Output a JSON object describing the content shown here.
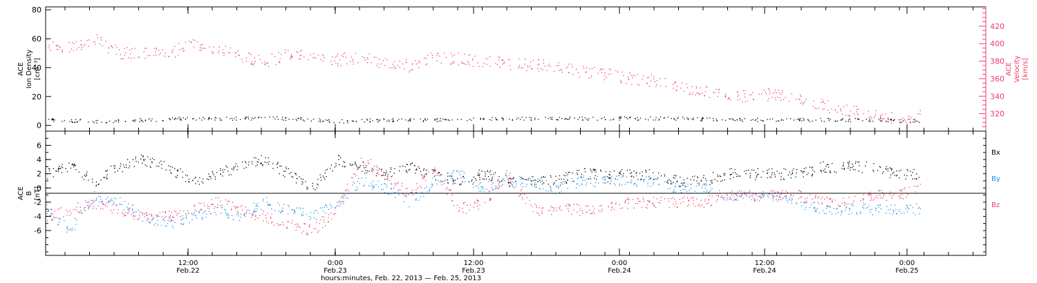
{
  "colors": {
    "black": "#000000",
    "pink": "#ee3a6a",
    "blue": "#1f8fe6"
  },
  "chart_data": [
    {
      "type": "scatter",
      "panel": "top",
      "ylabel_left": [
        "ACE",
        "Ion Density",
        "[cm⁻³]"
      ],
      "ylabel_right": [
        "ACE",
        "Velocity",
        "[km/s]"
      ],
      "left_axis": {
        "ylim": [
          -4,
          82
        ],
        "ticks": [
          0,
          20,
          40,
          60,
          80
        ]
      },
      "right_axis": {
        "ylim": [
          300,
          442
        ],
        "ticks": [
          320,
          340,
          360,
          380,
          400,
          420
        ]
      },
      "x_hours_range": [
        0,
        74
      ],
      "series": [
        {
          "axis": "right",
          "color": "pink",
          "points": [
            [
              0,
              400
            ],
            [
              2,
              395
            ],
            [
              4,
              405
            ],
            [
              6,
              390
            ],
            [
              8,
              390
            ],
            [
              10,
              387
            ],
            [
              12,
              402
            ],
            [
              14,
              395
            ],
            [
              16,
              385
            ],
            [
              18,
              380
            ],
            [
              20,
              388
            ],
            [
              22,
              385
            ],
            [
              24,
              382
            ],
            [
              26,
              385
            ],
            [
              28,
              378
            ],
            [
              30,
              375
            ],
            [
              32,
              385
            ],
            [
              34,
              383
            ],
            [
              36,
              380
            ],
            [
              38,
              378
            ],
            [
              40,
              376
            ],
            [
              42,
              374
            ],
            [
              44,
              369
            ],
            [
              46,
              366
            ],
            [
              48,
              361
            ],
            [
              50,
              358
            ],
            [
              52,
              352
            ],
            [
              54,
              346
            ],
            [
              56,
              343
            ],
            [
              58,
              340
            ],
            [
              60,
              343
            ],
            [
              62,
              337
            ],
            [
              64,
              330
            ],
            [
              66,
              325
            ],
            [
              68,
              318
            ],
            [
              70,
              314
            ],
            [
              72,
              318
            ]
          ]
        },
        {
          "axis": "left",
          "color": "black",
          "points": [
            [
              0,
              4
            ],
            [
              4,
              3
            ],
            [
              8,
              4
            ],
            [
              12,
              5
            ],
            [
              16,
              5
            ],
            [
              20,
              5
            ],
            [
              24,
              3
            ],
            [
              28,
              4
            ],
            [
              32,
              4
            ],
            [
              36,
              5
            ],
            [
              40,
              5
            ],
            [
              44,
              5
            ],
            [
              48,
              5
            ],
            [
              52,
              5
            ],
            [
              56,
              4
            ],
            [
              60,
              4
            ],
            [
              64,
              4
            ],
            [
              68,
              4
            ],
            [
              72,
              3
            ]
          ]
        }
      ]
    },
    {
      "type": "scatter",
      "panel": "bottom",
      "ylabel_left": [
        "ACE",
        "B",
        "[nT]"
      ],
      "left_axis": {
        "ylim": [
          -9.5,
          8
        ],
        "ticks": [
          -6,
          -4,
          -2,
          0,
          2,
          4,
          6
        ]
      },
      "x_hours_range": [
        0,
        74
      ],
      "legend": [
        "Bx",
        "By",
        "Bz"
      ],
      "series": [
        {
          "name": "Bx",
          "color": "black",
          "points": [
            [
              0,
              2
            ],
            [
              2,
              3
            ],
            [
              4,
              1
            ],
            [
              6,
              3
            ],
            [
              8,
              4
            ],
            [
              10,
              3
            ],
            [
              12,
              1
            ],
            [
              14,
              2
            ],
            [
              16,
              3
            ],
            [
              18,
              4
            ],
            [
              20,
              2
            ],
            [
              22,
              0
            ],
            [
              24,
              4
            ],
            [
              26,
              3
            ],
            [
              28,
              2
            ],
            [
              30,
              3
            ],
            [
              32,
              2
            ],
            [
              34,
              1
            ],
            [
              36,
              2
            ],
            [
              38,
              1
            ],
            [
              40,
              1
            ],
            [
              42,
              1
            ],
            [
              44,
              2
            ],
            [
              46,
              2
            ],
            [
              48,
              2
            ],
            [
              50,
              2
            ],
            [
              52,
              1
            ],
            [
              54,
              1
            ],
            [
              56,
              2
            ],
            [
              58,
              2
            ],
            [
              60,
              2
            ],
            [
              62,
              2
            ],
            [
              64,
              3
            ],
            [
              66,
              3
            ],
            [
              68,
              3
            ],
            [
              70,
              2
            ],
            [
              72,
              2
            ]
          ]
        },
        {
          "name": "By",
          "color": "blue",
          "points": [
            [
              0,
              -3
            ],
            [
              2,
              -6
            ],
            [
              4,
              -1
            ],
            [
              6,
              -2
            ],
            [
              8,
              -4
            ],
            [
              10,
              -5
            ],
            [
              12,
              -4
            ],
            [
              14,
              -3
            ],
            [
              16,
              -4
            ],
            [
              18,
              -2
            ],
            [
              20,
              -3
            ],
            [
              22,
              -4
            ],
            [
              24,
              -2
            ],
            [
              26,
              1
            ],
            [
              28,
              0
            ],
            [
              30,
              -2
            ],
            [
              32,
              1
            ],
            [
              34,
              2
            ],
            [
              36,
              0
            ],
            [
              38,
              1
            ],
            [
              40,
              1
            ],
            [
              42,
              0
            ],
            [
              44,
              1
            ],
            [
              46,
              1
            ],
            [
              48,
              1
            ],
            [
              50,
              1
            ],
            [
              52,
              0
            ],
            [
              54,
              0
            ],
            [
              56,
              -1
            ],
            [
              58,
              -1
            ],
            [
              60,
              -1
            ],
            [
              62,
              -2
            ],
            [
              64,
              -3
            ],
            [
              66,
              -3
            ],
            [
              68,
              -3
            ],
            [
              70,
              -3
            ],
            [
              72,
              -3
            ]
          ]
        },
        {
          "name": "Bz",
          "color": "pink",
          "points": [
            [
              0,
              -4
            ],
            [
              2,
              -3
            ],
            [
              4,
              -2
            ],
            [
              6,
              -3
            ],
            [
              8,
              -4
            ],
            [
              10,
              -4
            ],
            [
              12,
              -3
            ],
            [
              14,
              -2
            ],
            [
              16,
              -3
            ],
            [
              18,
              -4
            ],
            [
              20,
              -5
            ],
            [
              22,
              -6
            ],
            [
              24,
              -3
            ],
            [
              26,
              4
            ],
            [
              28,
              2
            ],
            [
              30,
              -1
            ],
            [
              32,
              3
            ],
            [
              34,
              -3
            ],
            [
              36,
              -2
            ],
            [
              38,
              2
            ],
            [
              40,
              -3
            ],
            [
              42,
              -3
            ],
            [
              44,
              -3
            ],
            [
              46,
              -3
            ],
            [
              48,
              -2
            ],
            [
              50,
              -2
            ],
            [
              52,
              -2
            ],
            [
              54,
              -2
            ],
            [
              56,
              -1
            ],
            [
              58,
              -1
            ],
            [
              60,
              -1
            ],
            [
              62,
              -1
            ],
            [
              64,
              -2
            ],
            [
              66,
              -2
            ],
            [
              68,
              -1
            ],
            [
              70,
              -1
            ],
            [
              72,
              0
            ]
          ]
        }
      ]
    }
  ],
  "x_axis": {
    "major_ticks": [
      {
        "time": "12:00",
        "date": "Feb.22"
      },
      {
        "time": "0:00",
        "date": "Feb.23"
      },
      {
        "time": "12:00",
        "date": "Feb.23"
      },
      {
        "time": "0:00",
        "date": "Feb.24"
      },
      {
        "time": "12:00",
        "date": "Feb.24"
      },
      {
        "time": "0:00",
        "date": "Feb.25"
      }
    ],
    "title": "hours:minutes, Feb. 22, 2013 — Feb. 25, 2013"
  }
}
